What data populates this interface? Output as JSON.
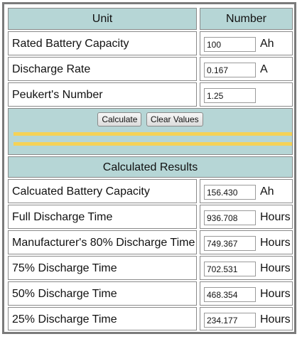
{
  "header": {
    "unit_col": "Unit",
    "number_col": "Number"
  },
  "inputs": [
    {
      "label": "Rated Battery Capacity",
      "value": "100",
      "unit": "Ah"
    },
    {
      "label": "Discharge Rate",
      "value": "0.167",
      "unit": "A"
    },
    {
      "label": "Peukert's Number",
      "value": "1.25",
      "unit": ""
    }
  ],
  "buttons": {
    "calculate": "Calculate",
    "clear": "Clear Values"
  },
  "results_header": "Calculated Results",
  "results": [
    {
      "label": "Calcuated Battery Capacity",
      "value": "156.430",
      "unit": "Ah"
    },
    {
      "label": "Full Discharge Time",
      "value": "936.708",
      "unit": "Hours"
    },
    {
      "label": "Manufacturer's 80% Discharge Time",
      "value": "749.367",
      "unit": "Hours"
    },
    {
      "label": "75% Discharge Time",
      "value": "702.531",
      "unit": "Hours"
    },
    {
      "label": "50% Discharge Time",
      "value": "468.354",
      "unit": "Hours"
    },
    {
      "label": "25% Discharge Time",
      "value": "234.177",
      "unit": "Hours"
    }
  ],
  "colors": {
    "header_bg": "#b6d6d6",
    "accent_bar": "#f5d257",
    "frame": "#7b7b7b"
  }
}
